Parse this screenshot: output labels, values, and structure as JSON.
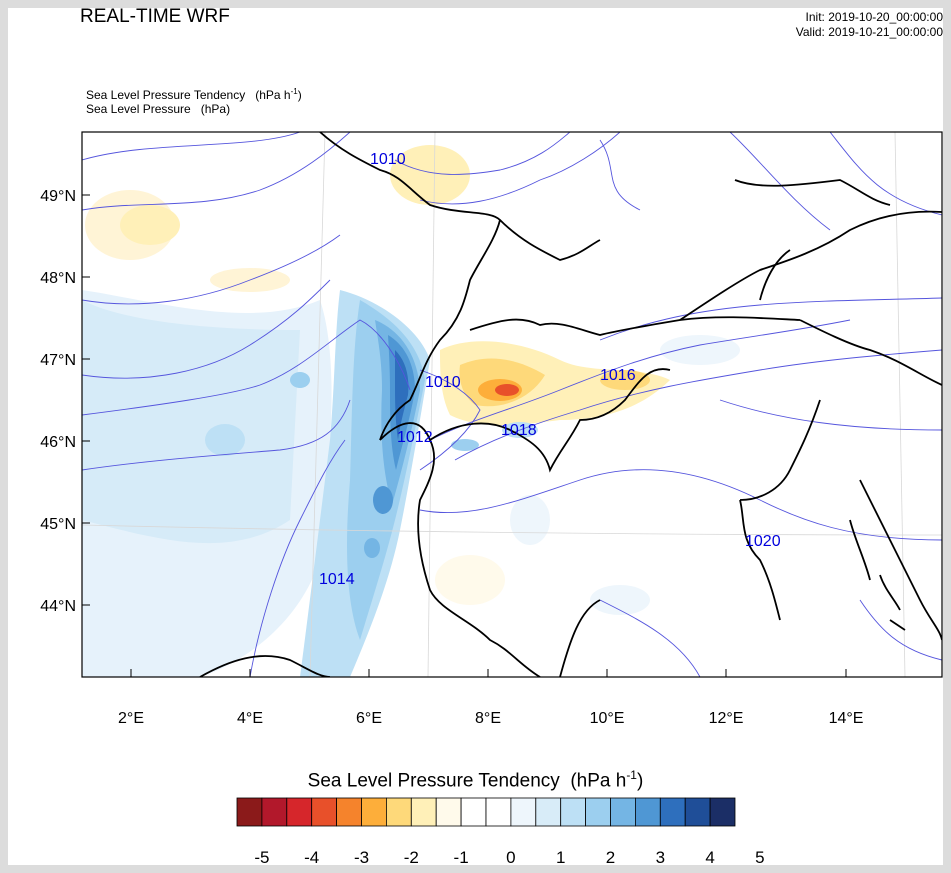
{
  "header": {
    "title": "REAL-TIME WRF",
    "init": "Init: 2019-10-20_00:00:00",
    "valid": "Valid: 2019-10-21_00:00:00"
  },
  "fields": {
    "field1": "Sea Level Pressure Tendency",
    "field1_units": "(hPa h",
    "field1_units_sup": "-1",
    "field1_units_close": ")",
    "field2": "Sea Level Pressure",
    "field2_units": "(hPa)"
  },
  "axes": {
    "lat_labels": [
      "49°N",
      "48°N",
      "47°N",
      "46°N",
      "45°N",
      "44°N"
    ],
    "lon_labels": [
      "2°E",
      "4°E",
      "6°E",
      "8°E",
      "10°E",
      "12°E",
      "14°E"
    ]
  },
  "isobar_labels": [
    "1010",
    "1010",
    "1012",
    "1018",
    "1016",
    "1014",
    "1020"
  ],
  "colorbar": {
    "title": "Sea Level Pressure Tendency",
    "units": "(hPa h",
    "units_sup": "-1",
    "units_close": ")",
    "labels": [
      "-5",
      "-4",
      "-3",
      "-2",
      "-1",
      "0",
      "1",
      "2",
      "3",
      "4",
      "5"
    ],
    "colors": [
      "#8b1a1a",
      "#b2182b",
      "#d6262b",
      "#e8502a",
      "#f5832c",
      "#fdae3a",
      "#fed97a",
      "#fff0b8",
      "#fffaeb",
      "#ffffff",
      "#ffffff",
      "#eef6fc",
      "#d8ecf8",
      "#bde0f5",
      "#9ccfef",
      "#74b5e4",
      "#4f97d4",
      "#2e6fbd",
      "#1f4e98",
      "#1b2e66"
    ]
  },
  "colors": {
    "isobar": "#5555dd",
    "isobar_label": "#0000dd",
    "border": "#000000"
  }
}
